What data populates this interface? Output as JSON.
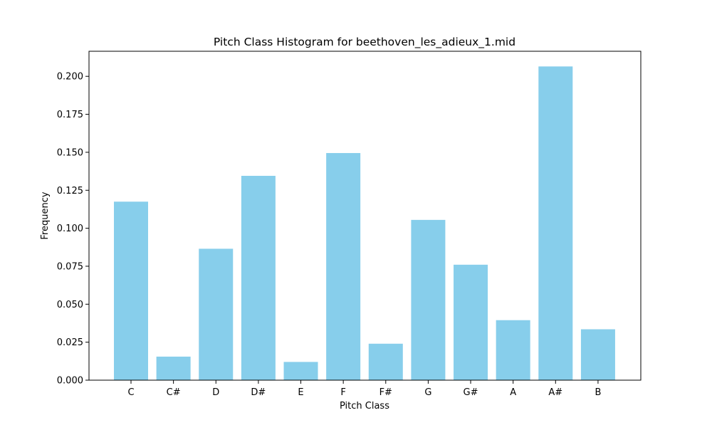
{
  "chart_data": {
    "type": "bar",
    "title": "Pitch Class Histogram for beethoven_les_adieux_1.mid",
    "xlabel": "Pitch Class",
    "ylabel": "Frequency",
    "categories": [
      "C",
      "C#",
      "D",
      "D#",
      "E",
      "F",
      "F#",
      "G",
      "G#",
      "A",
      "A#",
      "B"
    ],
    "values": [
      0.1175,
      0.0155,
      0.0865,
      0.1345,
      0.012,
      0.1495,
      0.024,
      0.1055,
      0.076,
      0.0395,
      0.2065,
      0.0335
    ],
    "ylim": [
      0,
      0.2165
    ],
    "yticks": [
      "0.000",
      "0.025",
      "0.050",
      "0.075",
      "0.100",
      "0.125",
      "0.150",
      "0.175",
      "0.200"
    ],
    "ytick_values": [
      0,
      0.025,
      0.05,
      0.075,
      0.1,
      0.125,
      0.15,
      0.175,
      0.2
    ],
    "grid": false,
    "bar_color": "#87CEEB",
    "axis_color": "#000000"
  }
}
